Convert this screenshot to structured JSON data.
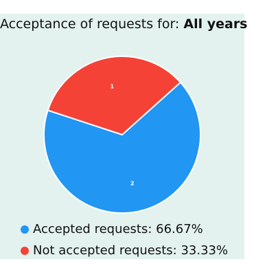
{
  "title": {
    "prefix": "Acceptance of requests for: ",
    "highlight": "All years"
  },
  "chart_data": {
    "type": "pie",
    "categories": [
      "Accepted requests",
      "Not accepted requests"
    ],
    "values": [
      2,
      1
    ],
    "percent_labels": [
      "66.67%",
      "33.33%"
    ],
    "slice_labels": [
      "2",
      "1"
    ],
    "colors": [
      "#2196f3",
      "#f44336"
    ],
    "title": "Acceptance of requests for: All years",
    "legend_placement": "bottom"
  },
  "legend": {
    "items": [
      {
        "label": "Accepted requests: 66.67%",
        "color": "#2196f3"
      },
      {
        "label": "Not accepted requests: 33.33%",
        "color": "#f44336"
      }
    ]
  }
}
